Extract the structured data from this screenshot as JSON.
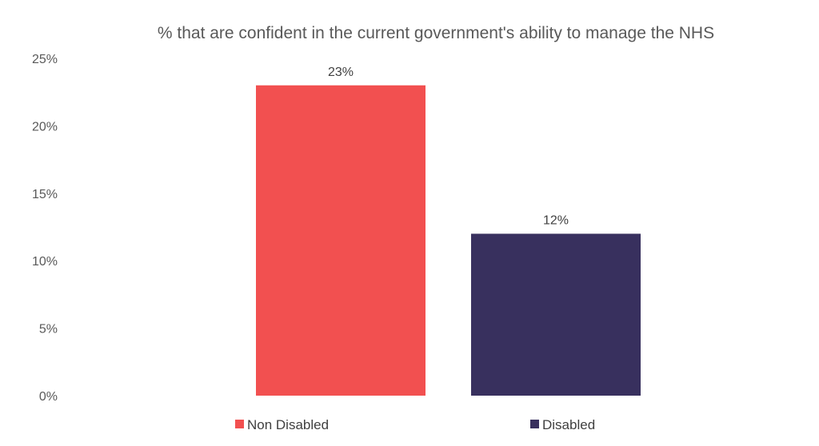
{
  "chart_data": {
    "type": "bar",
    "title": "% that are confident in the current government's ability to manage the NHS",
    "categories": [
      "Non Disabled",
      "Disabled"
    ],
    "values": [
      23,
      12
    ],
    "value_labels": [
      "23%",
      "12%"
    ],
    "colors": [
      "#f25050",
      "#38305e"
    ],
    "ylim": [
      0,
      25
    ],
    "yticks": [
      0,
      5,
      10,
      15,
      20,
      25
    ],
    "ytick_labels": [
      "0%",
      "5%",
      "10%",
      "15%",
      "20%",
      "25%"
    ],
    "grid": false,
    "legend": {
      "position": "bottom",
      "entries": [
        "Non Disabled",
        "Disabled"
      ]
    },
    "xlabel": "",
    "ylabel": ""
  }
}
